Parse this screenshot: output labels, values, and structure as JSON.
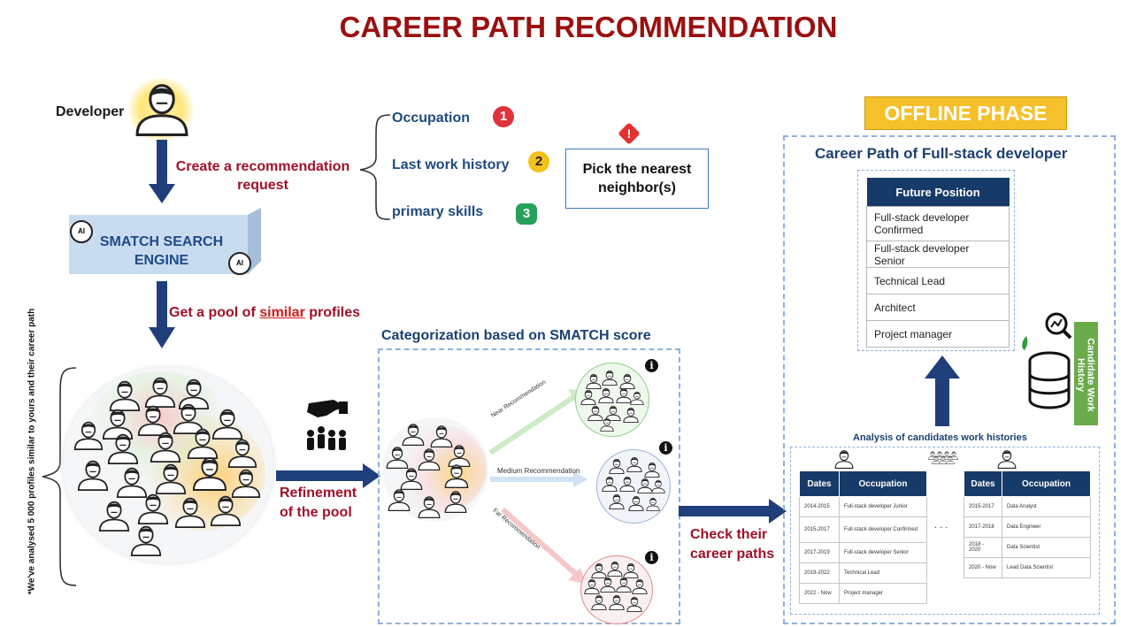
{
  "title": "CAREER PATH RECOMMENDATION",
  "developer_label": "Developer",
  "request_label": "Create a recommendation request",
  "engine_label": "SMATCH SEARCH ENGINE",
  "ai_chip_label": "AI",
  "criteria": [
    {
      "label": "Occupation",
      "badge": "1",
      "color": "#e0323c"
    },
    {
      "label": "Last work history",
      "badge": "2",
      "color": "#f2c21b"
    },
    {
      "label": "primary skills",
      "badge": "3",
      "color": "#27a05a"
    }
  ],
  "nearest_label": "Pick the nearest neighbor(s)",
  "warning_glyph": "!",
  "pool_label": {
    "before": "Get a pool of ",
    "emph": "similar",
    "after": " profiles"
  },
  "side_note": "*We've analysed 5 000 profiles similar to yours and their career path",
  "refinement_label": "Refinement of the pool",
  "categorization_title": "Categorization based on SMATCH score",
  "recommendations": [
    {
      "label": "Near Recommendation",
      "color": "#2e9b3a"
    },
    {
      "label": "Medium Recommendation",
      "color": "#3b5fa0"
    },
    {
      "label": "Far Recommendation",
      "color": "#d23a3a"
    }
  ],
  "info_glyph": "i",
  "check_label": "Check their career paths",
  "offline_phase": "OFFLINE PHASE",
  "career_path_title": "Career Path of Full-stack developer",
  "future_position": {
    "header": "Future Position",
    "rows": [
      "Full-stack developer Confirmed",
      "Full-stack developer Senior",
      "Technical Lead",
      "Architect",
      "Project manager"
    ]
  },
  "candidate_history_label": "Candidate Work History",
  "analysis_label": "Analysis of candidates work histories",
  "ellipsis": ". . .",
  "table_left": {
    "headers": [
      "Dates",
      "Occupation"
    ],
    "rows": [
      [
        "2014-2015",
        "Full-stack developer Junior"
      ],
      [
        "2015-2017",
        "Full-stack developer Confirmed"
      ],
      [
        "2017-2019",
        "Full-stack developer Senior"
      ],
      [
        "2019-2022",
        "Technical Lead"
      ],
      [
        "2022 - Now",
        "Project manager"
      ]
    ]
  },
  "table_right": {
    "headers": [
      "Dates",
      "Occupation"
    ],
    "rows": [
      [
        "2015-2017",
        "Data Analyst"
      ],
      [
        "2017-2018",
        "Data Engineer"
      ],
      [
        "2018 - 2020",
        "Data Scientist"
      ],
      [
        "2020 - Now",
        "Lead Data Scientist"
      ]
    ]
  },
  "colors": {
    "title": "#9b1010",
    "accent_red": "#a0102a",
    "navy": "#173b68",
    "offline_bg": "#f5c02a",
    "candidate_bg": "#6aab4a"
  }
}
